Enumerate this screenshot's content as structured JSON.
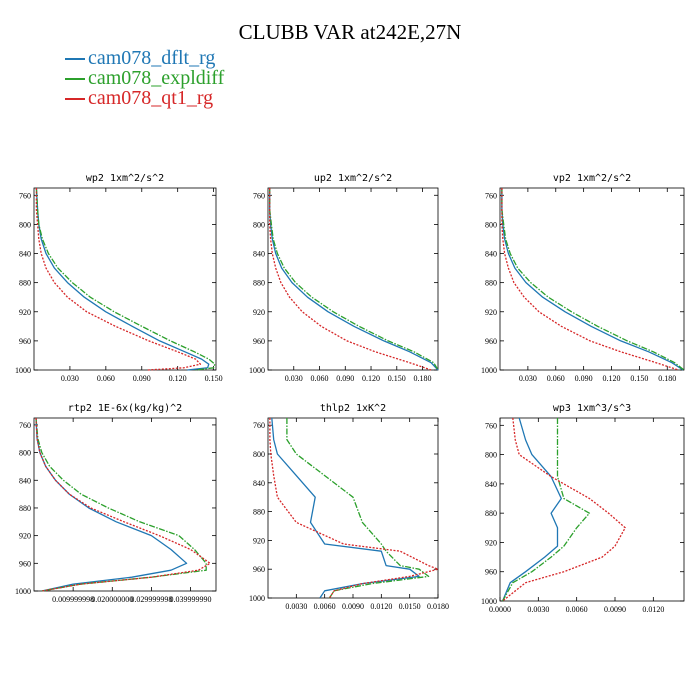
{
  "title": "CLUBB VAR at242E,27N",
  "legend": [
    {
      "name": "cam078_dflt_rg",
      "color": "#1f77b4"
    },
    {
      "name": "cam078_expldiff",
      "color": "#2ca02c"
    },
    {
      "name": "cam078_qt1_rg",
      "color": "#d62728"
    }
  ],
  "chart_data": [
    {
      "type": "line",
      "title": "wp2   1xm^2/s^2",
      "xlim": [
        0,
        0.152
      ],
      "ylim": [
        750,
        1000
      ],
      "xticks": [
        0.03,
        0.06,
        0.09,
        0.12,
        0.15
      ],
      "xtick_labels": [
        "0.030",
        "0.060",
        "0.090",
        "0.120",
        "0.150"
      ],
      "yticks": [
        760,
        800,
        840,
        880,
        920,
        960,
        1000
      ],
      "series": [
        {
          "name": "cam078_dflt_rg",
          "x": [
            0.002,
            0.003,
            0.004,
            0.006,
            0.01,
            0.017,
            0.028,
            0.042,
            0.06,
            0.082,
            0.105,
            0.126,
            0.14,
            0.146,
            0.145,
            0.128
          ],
          "y": [
            750,
            780,
            800,
            820,
            840,
            860,
            880,
            900,
            920,
            940,
            960,
            975,
            985,
            992,
            997,
            1000
          ]
        },
        {
          "name": "cam078_expldiff",
          "x": [
            0.002,
            0.003,
            0.004,
            0.007,
            0.012,
            0.02,
            0.032,
            0.047,
            0.067,
            0.09,
            0.114,
            0.134,
            0.146,
            0.151,
            0.15,
            0.135
          ],
          "y": [
            750,
            780,
            800,
            820,
            840,
            860,
            880,
            900,
            920,
            940,
            960,
            975,
            985,
            992,
            997,
            1000
          ]
        },
        {
          "name": "cam078_qt1_rg",
          "x": [
            0.002,
            0.002,
            0.003,
            0.004,
            0.006,
            0.01,
            0.017,
            0.028,
            0.044,
            0.068,
            0.096,
            0.12,
            0.135,
            0.139,
            0.125,
            0.095
          ],
          "y": [
            750,
            780,
            800,
            820,
            840,
            860,
            880,
            900,
            920,
            940,
            960,
            975,
            985,
            992,
            997,
            1000
          ]
        }
      ]
    },
    {
      "type": "line",
      "title": "up2   1xm^2/s^2",
      "xlim": [
        0,
        0.198
      ],
      "ylim": [
        750,
        1000
      ],
      "xticks": [
        0.03,
        0.06,
        0.09,
        0.12,
        0.15,
        0.18
      ],
      "xtick_labels": [
        "0.030",
        "0.060",
        "0.090",
        "0.120",
        "0.150",
        "0.180"
      ],
      "yticks": [
        760,
        800,
        840,
        880,
        920,
        960,
        1000
      ],
      "series": [
        {
          "name": "cam078_dflt_rg",
          "x": [
            0.002,
            0.002,
            0.003,
            0.005,
            0.009,
            0.016,
            0.028,
            0.046,
            0.07,
            0.1,
            0.135,
            0.165,
            0.19,
            0.198
          ],
          "y": [
            750,
            780,
            800,
            820,
            840,
            860,
            880,
            900,
            920,
            940,
            960,
            975,
            990,
            1000
          ]
        },
        {
          "name": "cam078_expldiff",
          "x": [
            0.002,
            0.002,
            0.004,
            0.006,
            0.011,
            0.019,
            0.032,
            0.051,
            0.076,
            0.106,
            0.14,
            0.17,
            0.193,
            0.198
          ],
          "y": [
            750,
            780,
            800,
            820,
            840,
            860,
            880,
            900,
            920,
            940,
            960,
            975,
            990,
            1000
          ]
        },
        {
          "name": "cam078_qt1_rg",
          "x": [
            0.002,
            0.002,
            0.002,
            0.003,
            0.005,
            0.009,
            0.015,
            0.025,
            0.04,
            0.062,
            0.092,
            0.125,
            0.165,
            0.19
          ],
          "y": [
            750,
            780,
            800,
            820,
            840,
            860,
            880,
            900,
            920,
            940,
            960,
            975,
            990,
            1000
          ]
        }
      ]
    },
    {
      "type": "line",
      "title": "vp2   1xm^2/s^2",
      "xlim": [
        0,
        0.198
      ],
      "ylim": [
        750,
        1000
      ],
      "xticks": [
        0.03,
        0.06,
        0.09,
        0.12,
        0.15,
        0.18
      ],
      "xtick_labels": [
        "0.030",
        "0.060",
        "0.090",
        "0.120",
        "0.150",
        "0.180"
      ],
      "yticks": [
        760,
        800,
        840,
        880,
        920,
        960,
        1000
      ],
      "series": [
        {
          "name": "cam078_dflt_rg",
          "x": [
            0.002,
            0.002,
            0.003,
            0.005,
            0.009,
            0.016,
            0.028,
            0.046,
            0.07,
            0.098,
            0.13,
            0.16,
            0.185,
            0.197
          ],
          "y": [
            750,
            780,
            800,
            820,
            840,
            860,
            880,
            900,
            920,
            940,
            960,
            975,
            990,
            1000
          ]
        },
        {
          "name": "cam078_expldiff",
          "x": [
            0.002,
            0.002,
            0.004,
            0.006,
            0.011,
            0.019,
            0.033,
            0.052,
            0.077,
            0.105,
            0.137,
            0.165,
            0.188,
            0.198
          ],
          "y": [
            750,
            780,
            800,
            820,
            840,
            860,
            880,
            900,
            920,
            940,
            960,
            975,
            990,
            1000
          ]
        },
        {
          "name": "cam078_qt1_rg",
          "x": [
            0.002,
            0.002,
            0.002,
            0.003,
            0.005,
            0.009,
            0.015,
            0.026,
            0.042,
            0.066,
            0.097,
            0.13,
            0.168,
            0.192
          ],
          "y": [
            750,
            780,
            800,
            820,
            840,
            860,
            880,
            900,
            920,
            940,
            960,
            975,
            990,
            1000
          ]
        }
      ]
    },
    {
      "type": "line",
      "title": "rtp2   1E-6x(kg/kg)^2",
      "xlim": [
        0,
        0.0465
      ],
      "ylim": [
        750,
        1000
      ],
      "xticks": [
        0.01,
        0.02,
        0.03,
        0.04
      ],
      "xtick_labels": [
        "0.009999998",
        "0.020000000",
        "0.029999998",
        "0.039999990"
      ],
      "yticks": [
        760,
        800,
        840,
        880,
        920,
        960,
        1000
      ],
      "series": [
        {
          "name": "cam078_dflt_rg",
          "x": [
            0.0005,
            0.0008,
            0.0015,
            0.003,
            0.0055,
            0.009,
            0.014,
            0.021,
            0.03,
            0.035,
            0.039,
            0.035,
            0.025,
            0.01,
            0.002
          ],
          "y": [
            750,
            780,
            800,
            820,
            840,
            860,
            880,
            900,
            920,
            940,
            960,
            970,
            980,
            990,
            1000
          ]
        },
        {
          "name": "cam078_expldiff",
          "x": [
            0.0005,
            0.001,
            0.002,
            0.004,
            0.0075,
            0.012,
            0.019,
            0.027,
            0.037,
            0.041,
            0.044,
            0.044,
            0.03,
            0.012,
            0.002
          ],
          "y": [
            750,
            780,
            800,
            820,
            840,
            860,
            880,
            900,
            920,
            940,
            960,
            970,
            980,
            990,
            1000
          ]
        },
        {
          "name": "cam078_qt1_rg",
          "x": [
            0.0005,
            0.0008,
            0.0015,
            0.003,
            0.0055,
            0.009,
            0.0145,
            0.023,
            0.032,
            0.04,
            0.045,
            0.042,
            0.03,
            0.012,
            0.002
          ],
          "y": [
            750,
            780,
            800,
            820,
            840,
            860,
            880,
            900,
            920,
            940,
            960,
            970,
            980,
            990,
            1000
          ]
        }
      ]
    },
    {
      "type": "line",
      "title": "thlp2   1xK^2",
      "xlim": [
        0,
        0.018
      ],
      "ylim": [
        750,
        1000
      ],
      "xticks": [
        0.003,
        0.006,
        0.009,
        0.012,
        0.015,
        0.018
      ],
      "xtick_labels": [
        "0.0030",
        "0.0060",
        "0.0090",
        "0.0120",
        "0.0150",
        "0.0180"
      ],
      "yticks": [
        760,
        800,
        840,
        880,
        920,
        960,
        1000
      ],
      "series": [
        {
          "name": "cam078_dflt_rg",
          "x": [
            0.0004,
            0.0006,
            0.001,
            0.003,
            0.005,
            0.0045,
            0.006,
            0.012,
            0.0125,
            0.015,
            0.016,
            0.01,
            0.006,
            0.0055
          ],
          "y": [
            750,
            780,
            800,
            830,
            860,
            895,
            925,
            935,
            955,
            960,
            970,
            980,
            990,
            1000
          ]
        },
        {
          "name": "cam078_expldiff",
          "x": [
            0.002,
            0.002,
            0.003,
            0.006,
            0.009,
            0.01,
            0.012,
            0.0125,
            0.014,
            0.016,
            0.017,
            0.011,
            0.007,
            0.0065
          ],
          "y": [
            750,
            780,
            800,
            830,
            860,
            895,
            925,
            935,
            955,
            960,
            970,
            980,
            990,
            1000
          ]
        },
        {
          "name": "cam078_qt1_rg",
          "x": [
            0.0002,
            0.0002,
            0.0003,
            0.0006,
            0.001,
            0.003,
            0.008,
            0.014,
            0.017,
            0.018,
            0.015,
            0.01,
            0.007,
            0.0065
          ],
          "y": [
            750,
            780,
            800,
            830,
            860,
            895,
            925,
            935,
            955,
            960,
            970,
            980,
            990,
            1000
          ]
        }
      ]
    },
    {
      "type": "line",
      "title": "wp3   1xm^3/s^3",
      "xlim": [
        0,
        0.0144
      ],
      "ylim": [
        750,
        1000
      ],
      "xticks": [
        0,
        0.003,
        0.006,
        0.009,
        0.012
      ],
      "xtick_labels": [
        "0.0000",
        "0.0030",
        "0.0060",
        "0.0090",
        "0.0120"
      ],
      "yticks": [
        760,
        800,
        840,
        880,
        920,
        960,
        1000
      ],
      "series": [
        {
          "name": "cam078_dflt_rg",
          "x": [
            0.0015,
            0.002,
            0.0025,
            0.004,
            0.0048,
            0.004,
            0.0045,
            0.0045,
            0.0035,
            0.002,
            0.0008,
            0.0002
          ],
          "y": [
            750,
            780,
            800,
            830,
            860,
            880,
            900,
            925,
            940,
            960,
            975,
            1000
          ]
        },
        {
          "name": "cam078_expldiff",
          "x": [
            0.0045,
            0.0045,
            0.0045,
            0.0045,
            0.005,
            0.007,
            0.006,
            0.005,
            0.004,
            0.0025,
            0.001,
            0.0002
          ],
          "y": [
            750,
            780,
            800,
            830,
            860,
            880,
            900,
            925,
            940,
            960,
            975,
            1000
          ]
        },
        {
          "name": "cam078_qt1_rg",
          "x": [
            0.001,
            0.0012,
            0.0015,
            0.004,
            0.007,
            0.0085,
            0.0098,
            0.009,
            0.008,
            0.005,
            0.002,
            0.0002
          ],
          "y": [
            750,
            780,
            800,
            830,
            860,
            880,
            900,
            925,
            940,
            960,
            975,
            1000
          ]
        }
      ]
    }
  ]
}
